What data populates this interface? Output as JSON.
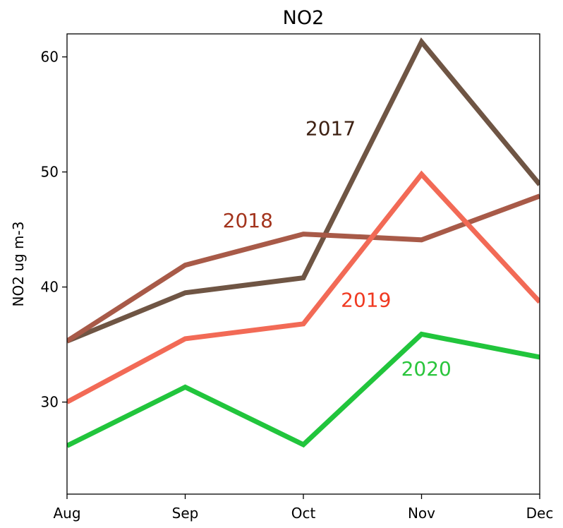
{
  "chart_data": {
    "type": "line",
    "title": "NO2",
    "xlabel": "",
    "ylabel": "NO2 ug m-3",
    "categories": [
      "Aug",
      "Sep",
      "Oct",
      "Nov",
      "Dec"
    ],
    "ylim": [
      22,
      62
    ],
    "yticks": [
      30,
      40,
      50,
      60
    ],
    "grid": false,
    "legend": "none (series labelled inline on plot)",
    "series": [
      {
        "name": "2017",
        "values": [
          35.3,
          39.5,
          40.8,
          61.3,
          48.9
        ],
        "color": "#6f5544",
        "label_color": "#3e2113"
      },
      {
        "name": "2018",
        "values": [
          35.3,
          41.9,
          44.6,
          44.1,
          47.9
        ],
        "color": "#a85a48",
        "label_color": "#a3341d"
      },
      {
        "name": "2019",
        "values": [
          30.0,
          35.5,
          36.8,
          49.8,
          38.7
        ],
        "color": "#f26a56",
        "label_color": "#f03a22"
      },
      {
        "name": "2020",
        "values": [
          26.2,
          31.3,
          26.3,
          35.9,
          33.9
        ],
        "color": "#21c53c",
        "label_color": "#2ac53c"
      }
    ]
  }
}
